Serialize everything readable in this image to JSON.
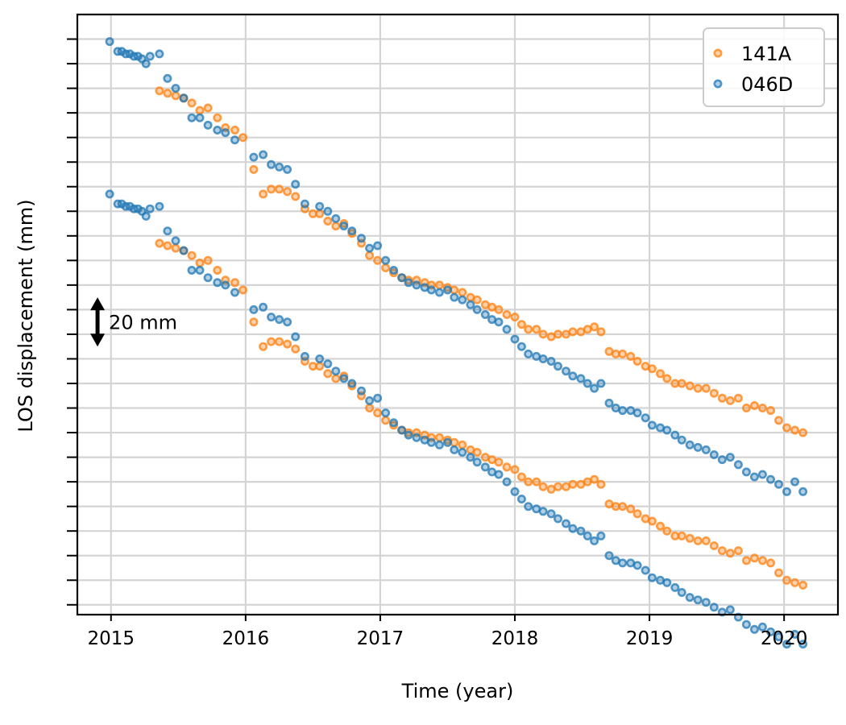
{
  "chart_data": {
    "type": "scatter",
    "title": "",
    "xlabel": "Time (year)",
    "ylabel": "LOS displacement (mm)",
    "xlim": [
      2014.75,
      2020.4
    ],
    "ylim": [
      -244,
      0
    ],
    "x_ticks": [
      2015,
      2016,
      2017,
      2018,
      2019,
      2020
    ],
    "y_ticks": [
      -240,
      -230,
      -220,
      -210,
      -200,
      -190,
      -180,
      -170,
      -160,
      -150,
      -140,
      -130,
      -120,
      -110,
      -100,
      -90,
      -80,
      -70,
      -60,
      -50,
      -40,
      -30,
      -20,
      -10
    ],
    "y_tick_labels_shown": false,
    "y_grid_every": 10,
    "grid": true,
    "legend_position": "top-right",
    "scale_bar": {
      "label": "20 mm",
      "x": 2014.9,
      "y_from": -115,
      "y_to": -135
    },
    "marker_style": "hollow-circle",
    "series": [
      {
        "name": "141A",
        "color": "#ff7f0e",
        "groups": [
          {
            "x": [
              2015.36,
              2015.42,
              2015.48,
              2015.54,
              2015.6,
              2015.66,
              2015.72,
              2015.79,
              2015.85,
              2015.92,
              2015.98,
              2016.06,
              2016.13,
              2016.19,
              2016.25,
              2016.31,
              2016.37,
              2016.44,
              2016.5,
              2016.55,
              2016.61,
              2016.67,
              2016.73,
              2016.79,
              2016.86,
              2016.92,
              2016.98,
              2017.04,
              2017.1,
              2017.16,
              2017.21,
              2017.27,
              2017.33,
              2017.38,
              2017.44,
              2017.5,
              2017.55,
              2017.61,
              2017.67,
              2017.72,
              2017.78,
              2017.83,
              2017.88,
              2017.94,
              2018.0,
              2018.05,
              2018.1,
              2018.16,
              2018.21,
              2018.27,
              2018.32,
              2018.38,
              2018.43,
              2018.49,
              2018.54,
              2018.59,
              2018.64,
              2018.7,
              2018.75,
              2018.8,
              2018.86,
              2018.91,
              2018.97,
              2019.02,
              2019.08,
              2019.13,
              2019.19,
              2019.24,
              2019.3,
              2019.36,
              2019.42,
              2019.48,
              2019.54,
              2019.6,
              2019.66,
              2019.72,
              2019.78,
              2019.84,
              2019.9,
              2019.96,
              2020.02,
              2020.08,
              2020.14
            ],
            "y": [
              -31,
              -32,
              -33,
              -34,
              -36,
              -39,
              -38,
              -42,
              -46,
              -47,
              -50,
              -63,
              -73,
              -71,
              -71,
              -72,
              -74,
              -79,
              -81,
              -81,
              -84,
              -86,
              -85,
              -89,
              -93,
              -98,
              -100,
              -103,
              -105,
              -107,
              -108,
              -108,
              -109,
              -110,
              -110,
              -111,
              -112,
              -113,
              -115,
              -116,
              -118,
              -119,
              -120,
              -122,
              -123,
              -126,
              -128,
              -128,
              -130,
              -131,
              -130,
              -130,
              -129,
              -129,
              -128,
              -127,
              -129,
              -137,
              -138,
              -138,
              -139,
              -141,
              -143,
              -144,
              -146,
              -148,
              -150,
              -150,
              -151,
              -152,
              -152,
              -154,
              -156,
              -157,
              -156,
              -160,
              -159,
              -160,
              -161,
              -165,
              -168,
              -169,
              -170
            ],
            "offset": 0
          },
          {
            "x": [
              2015.36,
              2015.42,
              2015.48,
              2015.54,
              2015.6,
              2015.66,
              2015.72,
              2015.79,
              2015.85,
              2015.92,
              2015.98,
              2016.06,
              2016.13,
              2016.19,
              2016.25,
              2016.31,
              2016.37,
              2016.44,
              2016.5,
              2016.55,
              2016.61,
              2016.67,
              2016.73,
              2016.79,
              2016.86,
              2016.92,
              2016.98,
              2017.04,
              2017.1,
              2017.16,
              2017.21,
              2017.27,
              2017.33,
              2017.38,
              2017.44,
              2017.5,
              2017.55,
              2017.61,
              2017.67,
              2017.72,
              2017.78,
              2017.83,
              2017.88,
              2017.94,
              2018.0,
              2018.05,
              2018.1,
              2018.16,
              2018.21,
              2018.27,
              2018.32,
              2018.38,
              2018.43,
              2018.49,
              2018.54,
              2018.59,
              2018.64,
              2018.7,
              2018.75,
              2018.8,
              2018.86,
              2018.91,
              2018.97,
              2019.02,
              2019.08,
              2019.13,
              2019.19,
              2019.24,
              2019.3,
              2019.36,
              2019.42,
              2019.48,
              2019.54,
              2019.6,
              2019.66,
              2019.72,
              2019.78,
              2019.84,
              2019.9,
              2019.96,
              2020.02,
              2020.08,
              2020.14
            ],
            "y": [
              -31,
              -32,
              -33,
              -34,
              -36,
              -39,
              -38,
              -42,
              -46,
              -47,
              -50,
              -63,
              -73,
              -71,
              -71,
              -72,
              -74,
              -79,
              -81,
              -81,
              -84,
              -86,
              -85,
              -89,
              -93,
              -98,
              -100,
              -103,
              -105,
              -107,
              -108,
              -108,
              -109,
              -110,
              -110,
              -111,
              -112,
              -113,
              -115,
              -116,
              -118,
              -119,
              -120,
              -122,
              -123,
              -126,
              -128,
              -128,
              -130,
              -131,
              -130,
              -130,
              -129,
              -129,
              -128,
              -127,
              -129,
              -137,
              -138,
              -138,
              -139,
              -141,
              -143,
              -144,
              -146,
              -148,
              -150,
              -150,
              -151,
              -152,
              -152,
              -154,
              -156,
              -157,
              -156,
              -160,
              -159,
              -160,
              -161,
              -165,
              -168,
              -169,
              -170
            ],
            "offset": -62
          }
        ]
      },
      {
        "name": "046D",
        "color": "#1f77b4",
        "groups": [
          {
            "x": [
              2014.99,
              2015.05,
              2015.08,
              2015.11,
              2015.14,
              2015.17,
              2015.2,
              2015.23,
              2015.26,
              2015.29,
              2015.36,
              2015.42,
              2015.48,
              2015.54,
              2015.6,
              2015.66,
              2015.72,
              2015.79,
              2015.85,
              2015.92,
              2016.06,
              2016.13,
              2016.19,
              2016.25,
              2016.31,
              2016.37,
              2016.44,
              2016.55,
              2016.61,
              2016.67,
              2016.73,
              2016.79,
              2016.86,
              2016.92,
              2016.98,
              2017.04,
              2017.1,
              2017.16,
              2017.21,
              2017.27,
              2017.33,
              2017.38,
              2017.44,
              2017.5,
              2017.55,
              2017.61,
              2017.67,
              2017.72,
              2017.78,
              2017.83,
              2017.88,
              2017.94,
              2018.0,
              2018.05,
              2018.1,
              2018.16,
              2018.21,
              2018.27,
              2018.32,
              2018.38,
              2018.43,
              2018.49,
              2018.54,
              2018.59,
              2018.64,
              2018.7,
              2018.75,
              2018.8,
              2018.86,
              2018.91,
              2018.97,
              2019.02,
              2019.08,
              2019.13,
              2019.19,
              2019.24,
              2019.3,
              2019.36,
              2019.42,
              2019.48,
              2019.54,
              2019.6,
              2019.66,
              2019.72,
              2019.78,
              2019.84,
              2019.9,
              2019.96,
              2020.02,
              2020.08,
              2020.14
            ],
            "y": [
              -11,
              -15,
              -15,
              -16,
              -16,
              -17,
              -17,
              -18,
              -20,
              -17,
              -16,
              -26,
              -30,
              -34,
              -42,
              -42,
              -45,
              -47,
              -48,
              -51,
              -58,
              -57,
              -61,
              -62,
              -63,
              -69,
              -77,
              -78,
              -80,
              -83,
              -86,
              -88,
              -91,
              -95,
              -94,
              -100,
              -104,
              -107,
              -109,
              -110,
              -111,
              -112,
              -113,
              -112,
              -115,
              -116,
              -118,
              -120,
              -122,
              -124,
              -125,
              -128,
              -132,
              -135,
              -138,
              -139,
              -140,
              -141,
              -143,
              -145,
              -147,
              -148,
              -150,
              -152,
              -150,
              -158,
              -160,
              -161,
              -161,
              -162,
              -164,
              -167,
              -168,
              -169,
              -171,
              -173,
              -175,
              -176,
              -177,
              -179,
              -181,
              -180,
              -183,
              -186,
              -188,
              -187,
              -189,
              -191,
              -194,
              -190,
              -194
            ],
            "offset": 0
          },
          {
            "x": [
              2014.99,
              2015.05,
              2015.08,
              2015.11,
              2015.14,
              2015.17,
              2015.2,
              2015.23,
              2015.26,
              2015.29,
              2015.36,
              2015.42,
              2015.48,
              2015.54,
              2015.6,
              2015.66,
              2015.72,
              2015.79,
              2015.85,
              2015.92,
              2016.06,
              2016.13,
              2016.19,
              2016.25,
              2016.31,
              2016.37,
              2016.44,
              2016.55,
              2016.61,
              2016.67,
              2016.73,
              2016.79,
              2016.86,
              2016.92,
              2016.98,
              2017.04,
              2017.1,
              2017.16,
              2017.21,
              2017.27,
              2017.33,
              2017.38,
              2017.44,
              2017.5,
              2017.55,
              2017.61,
              2017.67,
              2017.72,
              2017.78,
              2017.83,
              2017.88,
              2017.94,
              2018.0,
              2018.05,
              2018.1,
              2018.16,
              2018.21,
              2018.27,
              2018.32,
              2018.38,
              2018.43,
              2018.49,
              2018.54,
              2018.59,
              2018.64,
              2018.7,
              2018.75,
              2018.8,
              2018.86,
              2018.91,
              2018.97,
              2019.02,
              2019.08,
              2019.13,
              2019.19,
              2019.24,
              2019.3,
              2019.36,
              2019.42,
              2019.48,
              2019.54,
              2019.6,
              2019.66,
              2019.72,
              2019.78,
              2019.84,
              2019.9,
              2019.96,
              2020.02,
              2020.08,
              2020.14
            ],
            "y": [
              -11,
              -15,
              -15,
              -16,
              -16,
              -17,
              -17,
              -18,
              -20,
              -17,
              -16,
              -26,
              -30,
              -34,
              -42,
              -42,
              -45,
              -47,
              -48,
              -51,
              -58,
              -57,
              -61,
              -62,
              -63,
              -69,
              -77,
              -78,
              -80,
              -83,
              -86,
              -88,
              -91,
              -95,
              -94,
              -100,
              -104,
              -107,
              -109,
              -110,
              -111,
              -112,
              -113,
              -112,
              -115,
              -116,
              -118,
              -120,
              -122,
              -124,
              -125,
              -128,
              -132,
              -135,
              -138,
              -139,
              -140,
              -141,
              -143,
              -145,
              -147,
              -148,
              -150,
              -152,
              -150,
              -158,
              -160,
              -161,
              -161,
              -162,
              -164,
              -167,
              -168,
              -169,
              -171,
              -173,
              -175,
              -176,
              -177,
              -179,
              -181,
              -180,
              -183,
              -186,
              -188,
              -187,
              -189,
              -191,
              -194,
              -190,
              -194
            ],
            "offset": -62
          }
        ]
      }
    ]
  }
}
